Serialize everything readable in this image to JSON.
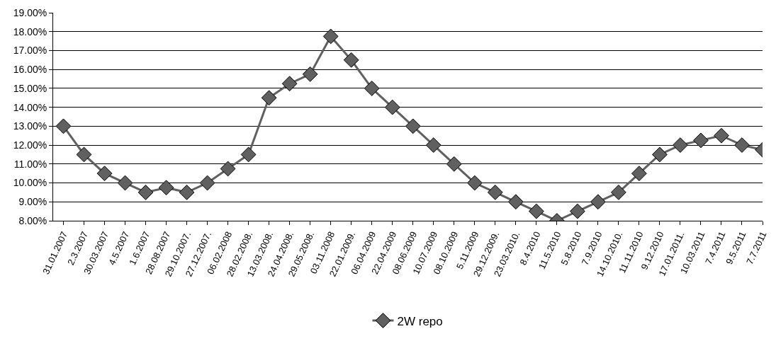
{
  "chart_data": {
    "type": "line",
    "categories": [
      "31.01.2007",
      "2.3.2007",
      "30.03.2007",
      "4.5.2007",
      "1.6.2007",
      "28.08.2007",
      "29.10.2007.",
      "27.12.2007.",
      "06.02.2008",
      "28.02.2008.",
      "13.03.2008.",
      "24.04.2008.",
      "29.05.2008.",
      "03.11.2008",
      "22.01.2009.",
      "06.04.2009",
      "22.04.2009",
      "08.06.2009",
      "10.07.2009",
      "08.10.2009",
      "5.11.2009",
      "29.12.2009.",
      "23.03.2010.",
      "8.4.2010",
      "11.5.2010",
      "5.8.2010",
      "7.9.2010",
      "14.10.2010.",
      "11.11.2010",
      "9.12.2010",
      "17.01.2011.",
      "10.03.2011",
      "7.4.2011",
      "9.5.2011",
      "7.7.2011"
    ],
    "series": [
      {
        "name": "2W repo",
        "color": "#606060",
        "values": [
          13,
          11.5,
          10.5,
          10,
          9.5,
          9.75,
          9.5,
          10,
          10.75,
          11.5,
          14.5,
          15.25,
          15.75,
          17.75,
          16.5,
          15,
          14,
          13,
          12,
          11,
          10,
          9.5,
          9,
          8.5,
          8,
          8.5,
          9,
          9.5,
          10.5,
          11.5,
          12,
          12.25,
          12.5,
          12,
          11.75
        ]
      }
    ],
    "ylim": [
      8,
      19
    ],
    "yticks": [
      {
        "value": 8,
        "label": "8.00%"
      },
      {
        "value": 9,
        "label": "9.00%"
      },
      {
        "value": 10,
        "label": "10.00%"
      },
      {
        "value": 11,
        "label": "11.00%"
      },
      {
        "value": 12,
        "label": "12.00%"
      },
      {
        "value": 13,
        "label": "13.00%"
      },
      {
        "value": 14,
        "label": "14.00%"
      },
      {
        "value": 15,
        "label": "15.00%"
      },
      {
        "value": 16,
        "label": "16.00%"
      },
      {
        "value": 17,
        "label": "17.00%"
      },
      {
        "value": 18,
        "label": "18.00%"
      },
      {
        "value": 19,
        "label": "19.00%"
      }
    ],
    "grid": "y",
    "legend": "bottom",
    "marker": "diamond",
    "line_style": "solid"
  }
}
